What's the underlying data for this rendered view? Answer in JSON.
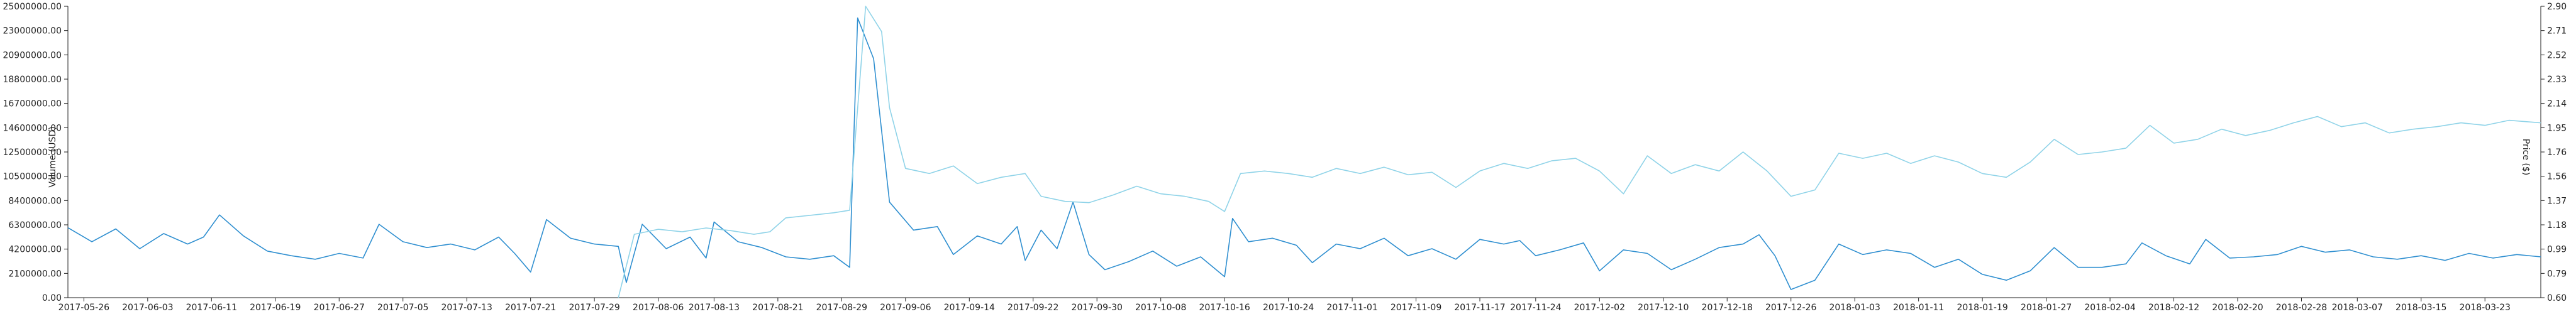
{
  "chart_data": {
    "type": "line",
    "title": "",
    "colors": {
      "volume": "#2f8fd0",
      "price": "#8fd3e8",
      "axis": "#222222"
    },
    "y_left": {
      "label": "Volume (USD)",
      "ticks": [
        "0.00",
        "2100000.00",
        "4200000.00",
        "6300000.00",
        "8400000.00",
        "10500000.00",
        "12500000.00",
        "14600000.00",
        "16700000.00",
        "18800000.00",
        "20900000.00",
        "23000000.00",
        "25000000.00"
      ],
      "range": [
        0,
        25000000
      ]
    },
    "y_right": {
      "label": "Price ($)",
      "ticks": [
        "0.60",
        "0.79",
        "0.99",
        "1.18",
        "1.37",
        "1.56",
        "1.76",
        "1.95",
        "2.14",
        "2.33",
        "2.52",
        "2.71",
        "2.90"
      ],
      "range": [
        0.6,
        2.9
      ]
    },
    "x": {
      "start": "2017-05-24",
      "end": "2018-03-30",
      "ticks": [
        "2017-05-26",
        "2017-06-03",
        "2017-06-11",
        "2017-06-19",
        "2017-06-27",
        "2017-07-05",
        "2017-07-13",
        "2017-07-21",
        "2017-07-29",
        "2017-08-06",
        "2017-08-13",
        "2017-08-21",
        "2017-08-29",
        "2017-09-06",
        "2017-09-14",
        "2017-09-22",
        "2017-09-30",
        "2017-10-08",
        "2017-10-16",
        "2017-10-24",
        "2017-11-01",
        "2017-11-09",
        "2017-11-17",
        "2017-11-24",
        "2017-12-02",
        "2017-12-10",
        "2017-12-18",
        "2017-12-26",
        "2018-01-03",
        "2018-01-11",
        "2018-01-19",
        "2018-01-27",
        "2018-02-04",
        "2018-02-12",
        "2018-02-20",
        "2018-02-28",
        "2018-03-07",
        "2018-03-15",
        "2018-03-23"
      ]
    },
    "series": [
      {
        "name": "Volume (USD)",
        "axis": "left",
        "points": [
          [
            "2017-05-24",
            6000000
          ],
          [
            "2017-05-27",
            4800000
          ],
          [
            "2017-05-30",
            5900000
          ],
          [
            "2017-06-02",
            4200000
          ],
          [
            "2017-06-05",
            5500000
          ],
          [
            "2017-06-08",
            4600000
          ],
          [
            "2017-06-10",
            5200000
          ],
          [
            "2017-06-12",
            7100000
          ],
          [
            "2017-06-15",
            5300000
          ],
          [
            "2017-06-18",
            4000000
          ],
          [
            "2017-06-21",
            3600000
          ],
          [
            "2017-06-24",
            3300000
          ],
          [
            "2017-06-27",
            3800000
          ],
          [
            "2017-06-30",
            3400000
          ],
          [
            "2017-07-02",
            6300000
          ],
          [
            "2017-07-05",
            4800000
          ],
          [
            "2017-07-08",
            4300000
          ],
          [
            "2017-07-11",
            4600000
          ],
          [
            "2017-07-14",
            4100000
          ],
          [
            "2017-07-17",
            5200000
          ],
          [
            "2017-07-19",
            3800000
          ],
          [
            "2017-07-21",
            2200000
          ],
          [
            "2017-07-23",
            6700000
          ],
          [
            "2017-07-26",
            5100000
          ],
          [
            "2017-07-29",
            4600000
          ],
          [
            "2017-08-01",
            4400000
          ],
          [
            "2017-08-02",
            1300000
          ],
          [
            "2017-08-04",
            6300000
          ],
          [
            "2017-08-07",
            4200000
          ],
          [
            "2017-08-10",
            5200000
          ],
          [
            "2017-08-12",
            3400000
          ],
          [
            "2017-08-13",
            6500000
          ],
          [
            "2017-08-16",
            4800000
          ],
          [
            "2017-08-19",
            4300000
          ],
          [
            "2017-08-22",
            3500000
          ],
          [
            "2017-08-25",
            3300000
          ],
          [
            "2017-08-28",
            3600000
          ],
          [
            "2017-08-30",
            2600000
          ],
          [
            "2017-08-31",
            24000000
          ],
          [
            "2017-09-02",
            20500000
          ],
          [
            "2017-09-04",
            8200000
          ],
          [
            "2017-09-07",
            5800000
          ],
          [
            "2017-09-10",
            6100000
          ],
          [
            "2017-09-12",
            3700000
          ],
          [
            "2017-09-15",
            5300000
          ],
          [
            "2017-09-18",
            4600000
          ],
          [
            "2017-09-20",
            6100000
          ],
          [
            "2017-09-21",
            3200000
          ],
          [
            "2017-09-23",
            5800000
          ],
          [
            "2017-09-25",
            4200000
          ],
          [
            "2017-09-27",
            8200000
          ],
          [
            "2017-09-29",
            3700000
          ],
          [
            "2017-10-01",
            2400000
          ],
          [
            "2017-10-04",
            3100000
          ],
          [
            "2017-10-07",
            4000000
          ],
          [
            "2017-10-10",
            2700000
          ],
          [
            "2017-10-13",
            3500000
          ],
          [
            "2017-10-16",
            1800000
          ],
          [
            "2017-10-17",
            6800000
          ],
          [
            "2017-10-19",
            4800000
          ],
          [
            "2017-10-22",
            5100000
          ],
          [
            "2017-10-25",
            4500000
          ],
          [
            "2017-10-27",
            3000000
          ],
          [
            "2017-10-30",
            4600000
          ],
          [
            "2017-11-02",
            4200000
          ],
          [
            "2017-11-05",
            5100000
          ],
          [
            "2017-11-08",
            3600000
          ],
          [
            "2017-11-11",
            4200000
          ],
          [
            "2017-11-14",
            3300000
          ],
          [
            "2017-11-17",
            5000000
          ],
          [
            "2017-11-20",
            4600000
          ],
          [
            "2017-11-22",
            4900000
          ],
          [
            "2017-11-24",
            3600000
          ],
          [
            "2017-11-27",
            4100000
          ],
          [
            "2017-11-30",
            4700000
          ],
          [
            "2017-12-02",
            2300000
          ],
          [
            "2017-12-05",
            4100000
          ],
          [
            "2017-12-08",
            3800000
          ],
          [
            "2017-12-11",
            2400000
          ],
          [
            "2017-12-14",
            3300000
          ],
          [
            "2017-12-17",
            4300000
          ],
          [
            "2017-12-20",
            4600000
          ],
          [
            "2017-12-22",
            5400000
          ],
          [
            "2017-12-24",
            3600000
          ],
          [
            "2017-12-26",
            700000
          ],
          [
            "2017-12-29",
            1500000
          ],
          [
            "2018-01-01",
            4600000
          ],
          [
            "2018-01-04",
            3700000
          ],
          [
            "2018-01-07",
            4100000
          ],
          [
            "2018-01-10",
            3800000
          ],
          [
            "2018-01-13",
            2600000
          ],
          [
            "2018-01-16",
            3300000
          ],
          [
            "2018-01-19",
            2000000
          ],
          [
            "2018-01-22",
            1500000
          ],
          [
            "2018-01-25",
            2300000
          ],
          [
            "2018-01-28",
            4300000
          ],
          [
            "2018-01-31",
            2600000
          ],
          [
            "2018-02-03",
            2600000
          ],
          [
            "2018-02-06",
            2900000
          ],
          [
            "2018-02-08",
            4700000
          ],
          [
            "2018-02-11",
            3600000
          ],
          [
            "2018-02-14",
            2900000
          ],
          [
            "2018-02-16",
            5000000
          ],
          [
            "2018-02-19",
            3400000
          ],
          [
            "2018-02-22",
            3500000
          ],
          [
            "2018-02-25",
            3700000
          ],
          [
            "2018-02-28",
            4400000
          ],
          [
            "2018-03-03",
            3900000
          ],
          [
            "2018-03-06",
            4100000
          ],
          [
            "2018-03-09",
            3500000
          ],
          [
            "2018-03-12",
            3300000
          ],
          [
            "2018-03-15",
            3600000
          ],
          [
            "2018-03-18",
            3200000
          ],
          [
            "2018-03-21",
            3800000
          ],
          [
            "2018-03-24",
            3400000
          ],
          [
            "2018-03-27",
            3700000
          ],
          [
            "2018-03-30",
            3500000
          ]
        ]
      },
      {
        "name": "Price ($)",
        "axis": "right",
        "points": [
          [
            "2017-08-01",
            0.6
          ],
          [
            "2017-08-03",
            1.1
          ],
          [
            "2017-08-06",
            1.14
          ],
          [
            "2017-08-09",
            1.12
          ],
          [
            "2017-08-12",
            1.15
          ],
          [
            "2017-08-15",
            1.13
          ],
          [
            "2017-08-18",
            1.1
          ],
          [
            "2017-08-20",
            1.12
          ],
          [
            "2017-08-22",
            1.23
          ],
          [
            "2017-08-25",
            1.25
          ],
          [
            "2017-08-28",
            1.27
          ],
          [
            "2017-08-30",
            1.29
          ],
          [
            "2017-09-01",
            2.9
          ],
          [
            "2017-09-03",
            2.7
          ],
          [
            "2017-09-04",
            2.1
          ],
          [
            "2017-09-06",
            1.62
          ],
          [
            "2017-09-09",
            1.58
          ],
          [
            "2017-09-12",
            1.64
          ],
          [
            "2017-09-15",
            1.5
          ],
          [
            "2017-09-18",
            1.55
          ],
          [
            "2017-09-21",
            1.58
          ],
          [
            "2017-09-23",
            1.4
          ],
          [
            "2017-09-26",
            1.36
          ],
          [
            "2017-09-29",
            1.35
          ],
          [
            "2017-10-02",
            1.41
          ],
          [
            "2017-10-05",
            1.48
          ],
          [
            "2017-10-08",
            1.42
          ],
          [
            "2017-10-11",
            1.4
          ],
          [
            "2017-10-14",
            1.36
          ],
          [
            "2017-10-16",
            1.28
          ],
          [
            "2017-10-18",
            1.58
          ],
          [
            "2017-10-21",
            1.6
          ],
          [
            "2017-10-24",
            1.58
          ],
          [
            "2017-10-27",
            1.55
          ],
          [
            "2017-10-30",
            1.62
          ],
          [
            "2017-11-02",
            1.58
          ],
          [
            "2017-11-05",
            1.63
          ],
          [
            "2017-11-08",
            1.57
          ],
          [
            "2017-11-11",
            1.59
          ],
          [
            "2017-11-14",
            1.47
          ],
          [
            "2017-11-17",
            1.6
          ],
          [
            "2017-11-20",
            1.66
          ],
          [
            "2017-11-23",
            1.62
          ],
          [
            "2017-11-26",
            1.68
          ],
          [
            "2017-11-29",
            1.7
          ],
          [
            "2017-12-02",
            1.6
          ],
          [
            "2017-12-05",
            1.42
          ],
          [
            "2017-12-08",
            1.72
          ],
          [
            "2017-12-11",
            1.58
          ],
          [
            "2017-12-14",
            1.65
          ],
          [
            "2017-12-17",
            1.6
          ],
          [
            "2017-12-20",
            1.75
          ],
          [
            "2017-12-23",
            1.6
          ],
          [
            "2017-12-26",
            1.4
          ],
          [
            "2017-12-29",
            1.45
          ],
          [
            "2018-01-01",
            1.74
          ],
          [
            "2018-01-04",
            1.7
          ],
          [
            "2018-01-07",
            1.74
          ],
          [
            "2018-01-10",
            1.66
          ],
          [
            "2018-01-13",
            1.72
          ],
          [
            "2018-01-16",
            1.67
          ],
          [
            "2018-01-19",
            1.58
          ],
          [
            "2018-01-22",
            1.55
          ],
          [
            "2018-01-25",
            1.67
          ],
          [
            "2018-01-28",
            1.85
          ],
          [
            "2018-01-31",
            1.73
          ],
          [
            "2018-02-03",
            1.75
          ],
          [
            "2018-02-06",
            1.78
          ],
          [
            "2018-02-09",
            1.96
          ],
          [
            "2018-02-12",
            1.82
          ],
          [
            "2018-02-15",
            1.85
          ],
          [
            "2018-02-18",
            1.93
          ],
          [
            "2018-02-21",
            1.88
          ],
          [
            "2018-02-24",
            1.92
          ],
          [
            "2018-02-27",
            1.98
          ],
          [
            "2018-03-02",
            2.03
          ],
          [
            "2018-03-05",
            1.95
          ],
          [
            "2018-03-08",
            1.98
          ],
          [
            "2018-03-11",
            1.9
          ],
          [
            "2018-03-14",
            1.93
          ],
          [
            "2018-03-17",
            1.95
          ],
          [
            "2018-03-20",
            1.98
          ],
          [
            "2018-03-23",
            1.96
          ],
          [
            "2018-03-26",
            2.0
          ],
          [
            "2018-03-30",
            1.98
          ]
        ]
      }
    ]
  }
}
